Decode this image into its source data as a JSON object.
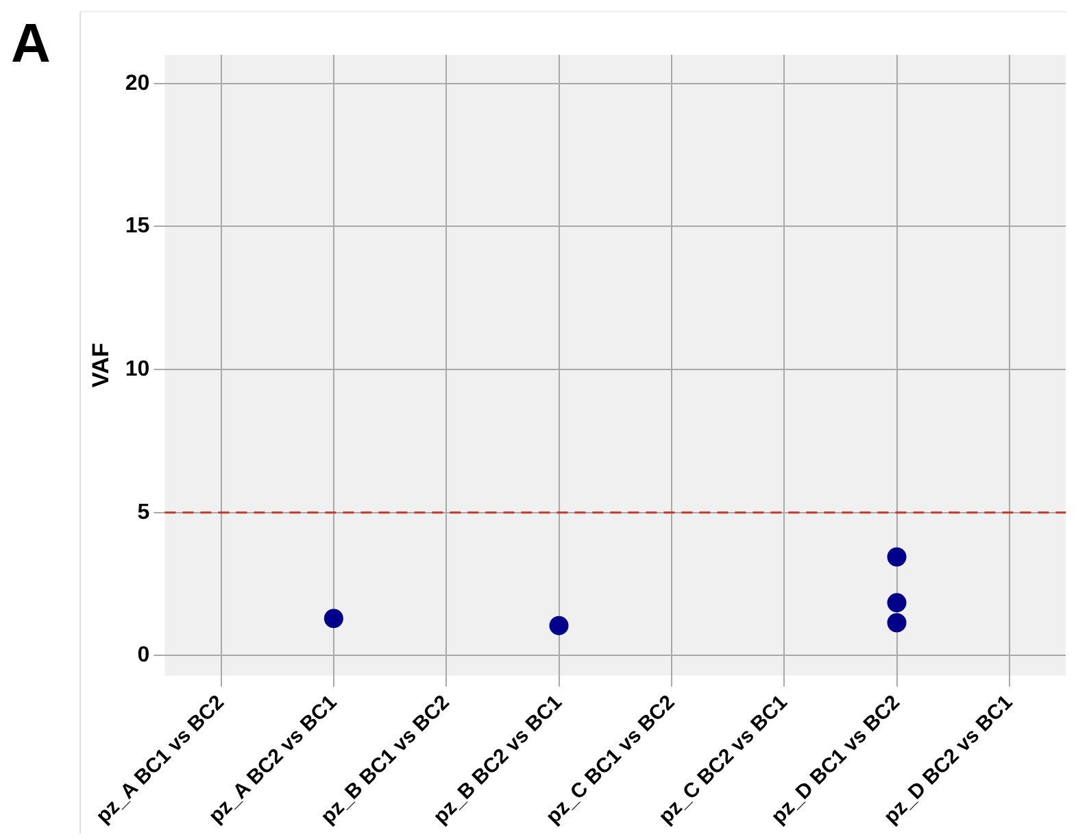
{
  "chart_data": {
    "type": "scatter",
    "ylabel": "VAF",
    "annotations": [
      "A"
    ],
    "categories": [
      "pz_A BC1 vs BC2",
      "pz_A BC2 vs BC1",
      "pz_B BC1 vs BC2",
      "pz_B BC2 vs BC1",
      "pz_C BC1 vs BC2",
      "pz_C BC2 vs BC1",
      "pz_D BC1 vs BC2",
      "pz_D BC2 vs BC1"
    ],
    "series": [
      {
        "color": "#00008b",
        "x": [
          "pz_A BC2 vs BC1",
          "pz_B BC2 vs BC1",
          "pz_D BC1 vs BC2",
          "pz_D BC1 vs BC2",
          "pz_D BC1 vs BC2"
        ],
        "values": [
          1.3,
          1.05,
          3.45,
          1.85,
          1.15
        ]
      }
    ],
    "ylim": [
      -0.7,
      21
    ],
    "yticks": [
      0,
      5,
      10,
      15,
      20
    ],
    "grid": true,
    "legend": false,
    "marker": "circle",
    "ref_lines": [
      {
        "axis": "y",
        "value": 5,
        "label": null,
        "color": "#c0392b",
        "line_style": "dashed"
      }
    ]
  }
}
